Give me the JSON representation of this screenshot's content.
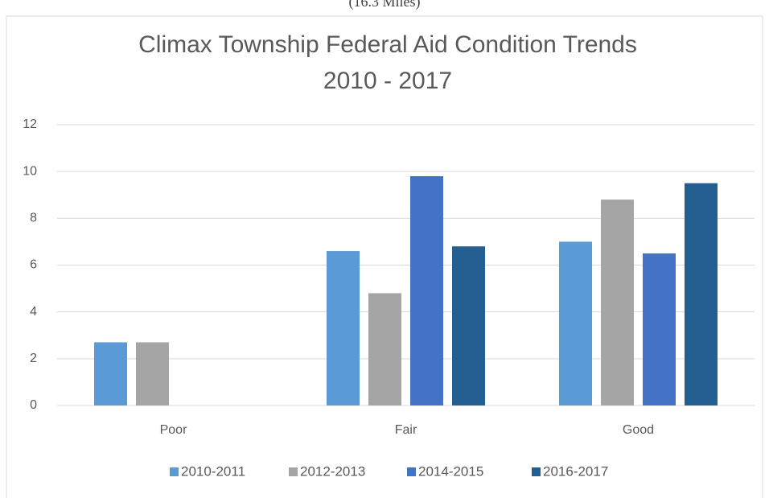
{
  "chart_data": {
    "type": "bar",
    "header_note": "(16.3 Miles)",
    "title": "Climax Township Federal Aid Condition Trends",
    "subtitle": "2010 - 2017",
    "categories": [
      "Poor",
      "Fair",
      "Good"
    ],
    "series": [
      {
        "name": "2010-2011",
        "color": "#5b9bd5",
        "values": [
          2.7,
          6.6,
          7.0
        ]
      },
      {
        "name": "2012-2013",
        "color": "#a5a5a5",
        "values": [
          2.7,
          4.8,
          8.8
        ]
      },
      {
        "name": "2014-2015",
        "color": "#4472c4",
        "values": [
          0,
          9.8,
          6.5
        ]
      },
      {
        "name": "2016-2017",
        "color": "#255e91",
        "values": [
          0,
          6.8,
          9.5
        ]
      }
    ],
    "ylim": [
      0,
      12
    ],
    "yticks": [
      0,
      2,
      4,
      6,
      8,
      10,
      12
    ],
    "grid": true,
    "legend": "bottom"
  }
}
